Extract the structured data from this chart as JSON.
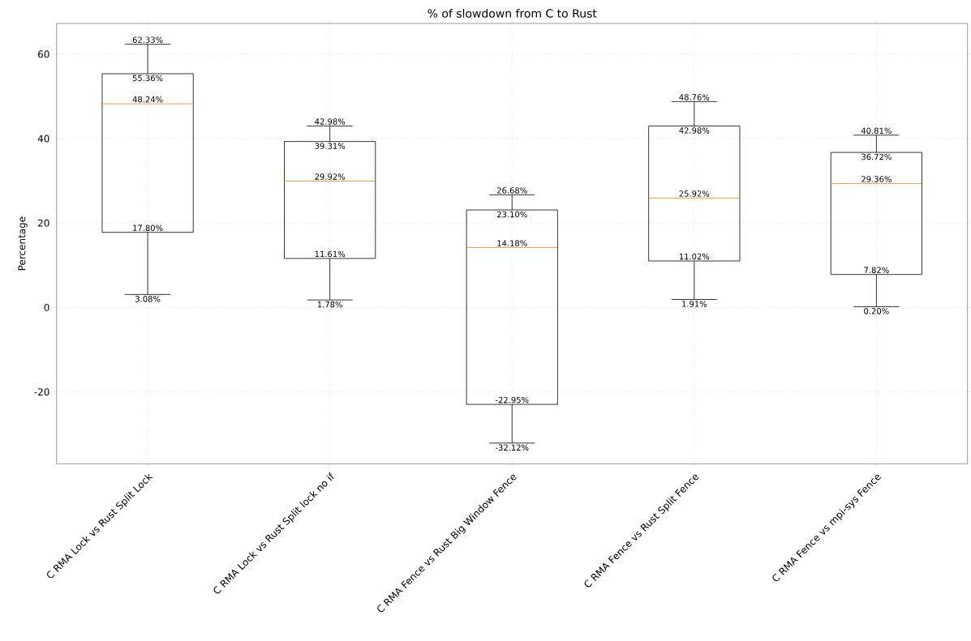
{
  "chart_data": {
    "type": "box",
    "title": "% of slowdown from C to Rust",
    "ylabel": "Percentage",
    "categories": [
      "C RMA Lock vs Rust Split Lock",
      "C RMA Lock vs Rust Split lock no if",
      "C RMA Fence vs Rust Big Window Fence",
      "C RMA Fence vs Rust Split Fence",
      "C RMA Fence vs mpi-sys Fence"
    ],
    "series": [
      {
        "color": "#000000",
        "boxes": [
          {
            "low": 3.08,
            "q1": 17.8,
            "median": 48.24,
            "q3": 55.36,
            "high": 62.33
          },
          {
            "low": 1.78,
            "q1": 11.61,
            "median": 29.92,
            "q3": 39.31,
            "high": 42.98
          },
          {
            "low": -32.12,
            "q1": -22.95,
            "median": 14.18,
            "q3": 23.1,
            "high": 26.68
          },
          {
            "low": 1.91,
            "q1": 11.02,
            "median": 25.92,
            "q3": 42.98,
            "high": 48.76
          },
          {
            "low": 0.2,
            "q1": 7.82,
            "median": 29.36,
            "q3": 36.72,
            "high": 40.81
          }
        ]
      }
    ],
    "ylim": [
      -37.03,
      67.27
    ],
    "yticks": [
      -20,
      0,
      20,
      40,
      60
    ],
    "grid": true,
    "annotations": [
      {
        "text": "62.33%",
        "x": "C RMA Lock vs Rust Split Lock",
        "y": 62.33
      },
      {
        "text": "55.36%",
        "x": "C RMA Lock vs Rust Split Lock",
        "y": 55.36
      },
      {
        "text": "48.24%",
        "x": "C RMA Lock vs Rust Split Lock",
        "y": 48.24
      },
      {
        "text": "17.80%",
        "x": "C RMA Lock vs Rust Split Lock",
        "y": 17.8
      },
      {
        "text": "3.08%",
        "x": "C RMA Lock vs Rust Split Lock",
        "y": 3.08
      },
      {
        "text": "42.98%",
        "x": "C RMA Lock vs Rust Split lock no if",
        "y": 42.98
      },
      {
        "text": "39.31%",
        "x": "C RMA Lock vs Rust Split lock no if",
        "y": 39.31
      },
      {
        "text": "29.92%",
        "x": "C RMA Lock vs Rust Split lock no if",
        "y": 29.92
      },
      {
        "text": "11.61%",
        "x": "C RMA Lock vs Rust Split lock no if",
        "y": 11.61
      },
      {
        "text": "1.78%",
        "x": "C RMA Lock vs Rust Split lock no if",
        "y": 1.78
      },
      {
        "text": "26.68%",
        "x": "C RMA Fence vs Rust Big Window Fence",
        "y": 26.68
      },
      {
        "text": "23.10%",
        "x": "C RMA Fence vs Rust Big Window Fence",
        "y": 23.1
      },
      {
        "text": "14.18%",
        "x": "C RMA Fence vs Rust Big Window Fence",
        "y": 14.18
      },
      {
        "text": "-22.95%",
        "x": "C RMA Fence vs Rust Big Window Fence",
        "y": -22.95
      },
      {
        "text": "-32.12%",
        "x": "C RMA Fence vs Rust Big Window Fence",
        "y": -32.12
      },
      {
        "text": "48.76%",
        "x": "C RMA Fence vs Rust Split Fence",
        "y": 48.76
      },
      {
        "text": "42.98%",
        "x": "C RMA Fence vs Rust Split Fence",
        "y": 42.98
      },
      {
        "text": "25.92%",
        "x": "C RMA Fence vs Rust Split Fence",
        "y": 25.92
      },
      {
        "text": "11.02%",
        "x": "C RMA Fence vs Rust Split Fence",
        "y": 11.02
      },
      {
        "text": "1.91%",
        "x": "C RMA Fence vs Rust Split Fence",
        "y": 1.91
      },
      {
        "text": "40.81%",
        "x": "C RMA Fence vs mpi-sys Fence",
        "y": 40.81
      },
      {
        "text": "36.72%",
        "x": "C RMA Fence vs mpi-sys Fence",
        "y": 36.72
      },
      {
        "text": "29.36%",
        "x": "C RMA Fence vs mpi-sys Fence",
        "y": 29.36
      },
      {
        "text": "7.82%",
        "x": "C RMA Fence vs mpi-sys Fence",
        "y": 7.82
      },
      {
        "text": "0.20%",
        "x": "C RMA Fence vs mpi-sys Fence",
        "y": 0.2
      }
    ]
  }
}
